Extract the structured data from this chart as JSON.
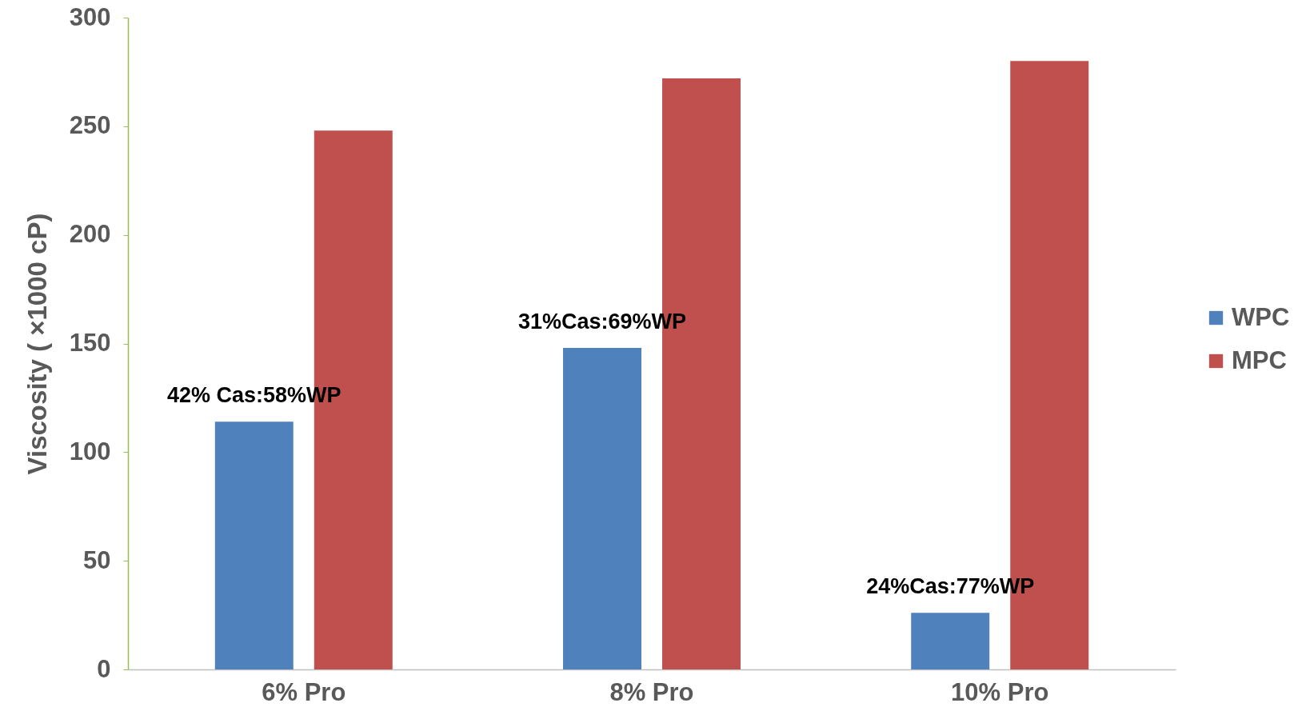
{
  "chart_data": {
    "type": "bar",
    "ylabel": "Viscosity ( ×1000 cP)",
    "categories": [
      "6% Pro",
      "8% Pro",
      "10% Pro"
    ],
    "series": [
      {
        "name": "WPC",
        "color": "#4f81bd",
        "values": [
          114,
          148,
          26
        ]
      },
      {
        "name": "MPC",
        "color": "#c0504d",
        "values": [
          248,
          272,
          280
        ]
      }
    ],
    "ylim": [
      0,
      300
    ],
    "yticks": [
      0,
      50,
      100,
      150,
      200,
      250,
      300
    ],
    "grid": false,
    "legend": "right",
    "annotations": [
      "42% Cas:58%WP",
      "31%Cas:69%WP",
      "24%Cas:77%WP"
    ]
  }
}
